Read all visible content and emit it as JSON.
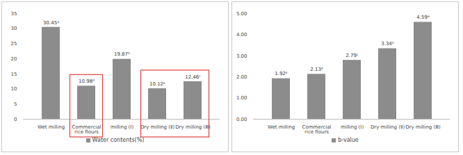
{
  "chart_data": [
    {
      "type": "bar",
      "categories": [
        "Wet milling",
        "Commercial rice flours",
        "milling (Ⅰ)",
        "Dry milling (Ⅱ)",
        "Dry milling (Ⅲ)"
      ],
      "series": [
        {
          "name": "Water contents(%)",
          "color": "#8c8c8c",
          "values": [
            30.45,
            10.98,
            19.87,
            10.12,
            12.46
          ],
          "value_labels": [
            "30.45ᵃ",
            "10.98ᵈ",
            "19.87ᵇ",
            "10.12ᵉ",
            "12.46ᶜ"
          ]
        }
      ],
      "ylim": [
        0,
        35
      ],
      "yticks": [
        0,
        5,
        10,
        15,
        20,
        25,
        30,
        35
      ],
      "grid": false,
      "data_labels": true,
      "legend": "bottom"
    },
    {
      "type": "bar",
      "categories": [
        "Wet milling",
        "Commercial rice flours",
        "milling (Ⅰ)",
        "Dry milling (Ⅱ)",
        "Dry milling (Ⅲ)"
      ],
      "series": [
        {
          "name": "b-value",
          "color": "#8c8c8c",
          "values": [
            1.92,
            2.13,
            2.79,
            3.34,
            4.59
          ],
          "value_labels": [
            "1.92ᵉ",
            "2.13ᵈ",
            "2.79ᶜ",
            "3.34ᵇ",
            "4.59ᵃ"
          ]
        }
      ],
      "ylim": [
        0,
        5
      ],
      "yticks": [
        {
          "value": 0,
          "label": "0.00"
        },
        {
          "value": 1,
          "label": "1.00"
        },
        {
          "value": 2,
          "label": "2.00"
        },
        {
          "value": 3,
          "label": "3.00"
        },
        {
          "value": 4,
          "label": "4.00"
        },
        {
          "value": 5,
          "label": "5.00"
        }
      ],
      "grid": false,
      "data_labels": true,
      "legend": "bottom"
    }
  ]
}
